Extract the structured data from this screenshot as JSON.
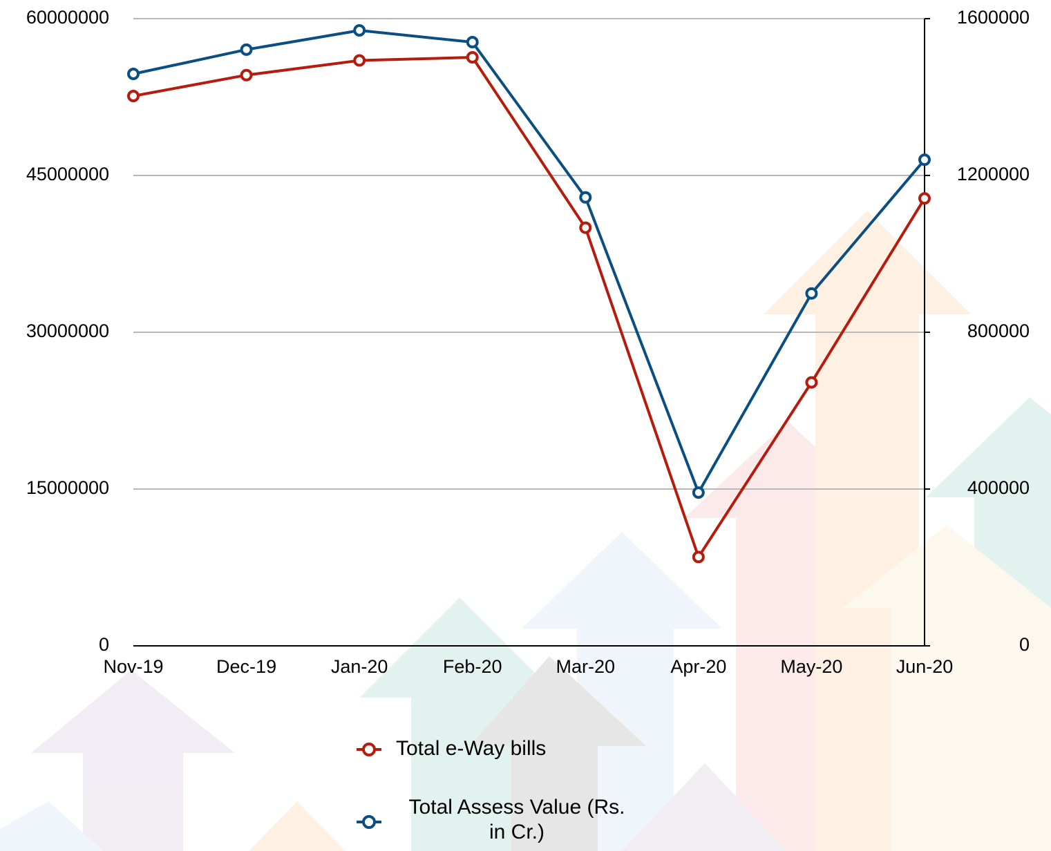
{
  "chart_data": {
    "type": "line",
    "categories": [
      "Nov-19",
      "Dec-19",
      "Jan-20",
      "Feb-20",
      "Mar-20",
      "Apr-20",
      "May-20",
      "Jun-20"
    ],
    "series": [
      {
        "name": "Total e-Way bills",
        "color": "#b51c0e",
        "values": [
          52600000,
          54600000,
          56000000,
          56300000,
          40000000,
          8500000,
          25200000,
          42800000
        ]
      },
      {
        "name": "Total Assess Value (Rs. in Cr.)",
        "color": "#0b4f82",
        "axis": "y2",
        "values": [
          1459000,
          1521000,
          1570000,
          1540000,
          1144000,
          391000,
          899000,
          1240000
        ]
      }
    ],
    "ylim": [
      0,
      60000000
    ],
    "yticks": [
      0,
      15000000,
      30000000,
      45000000,
      60000000
    ],
    "y2lim": [
      0,
      1600000
    ],
    "y2ticks": [
      0,
      400000,
      800000,
      1200000,
      1600000
    ],
    "grid": true
  }
}
